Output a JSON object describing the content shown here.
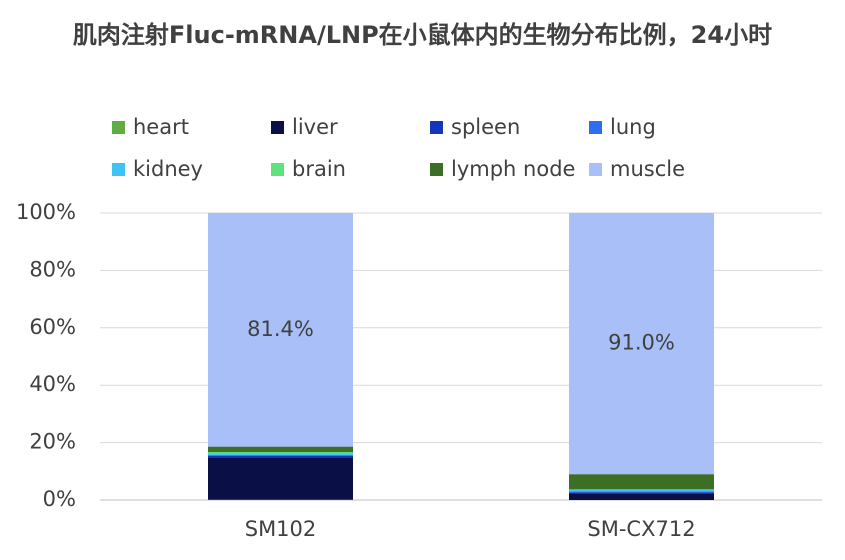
{
  "chart_data": {
    "type": "stacked_bar",
    "title": "肌肉注射Fluc-mRNA/LNP在小鼠体内的生物分布比例，24小时",
    "categories": [
      "SM102",
      "SM-CX712"
    ],
    "series": [
      {
        "name": "heart",
        "color": "#62ad43",
        "values": [
          0.1,
          0.0
        ]
      },
      {
        "name": "liver",
        "color": "#0a0f45",
        "values": [
          14.8,
          2.3
        ]
      },
      {
        "name": "spleen",
        "color": "#1535bd",
        "values": [
          0.5,
          0.4
        ]
      },
      {
        "name": "lung",
        "color": "#2f6cf0",
        "values": [
          0.3,
          0.3
        ]
      },
      {
        "name": "kidney",
        "color": "#3fc3f5",
        "values": [
          0.5,
          0.5
        ]
      },
      {
        "name": "brain",
        "color": "#5ee27b",
        "values": [
          0.5,
          0.2
        ]
      },
      {
        "name": "lymph node",
        "color": "#3c6e23",
        "values": [
          1.9,
          5.3
        ]
      },
      {
        "name": "muscle",
        "color": "#a9bff8",
        "values": [
          81.4,
          91.0
        ],
        "value_labels": [
          "81.4%",
          "91.0%"
        ]
      }
    ],
    "ylim": [
      0,
      100
    ],
    "yticks": [
      {
        "value": 0,
        "label": "0%"
      },
      {
        "value": 20,
        "label": "20%"
      },
      {
        "value": 40,
        "label": "40%"
      },
      {
        "value": 60,
        "label": "60%"
      },
      {
        "value": 80,
        "label": "80%"
      },
      {
        "value": 100,
        "label": "100%"
      }
    ],
    "grid": true
  }
}
